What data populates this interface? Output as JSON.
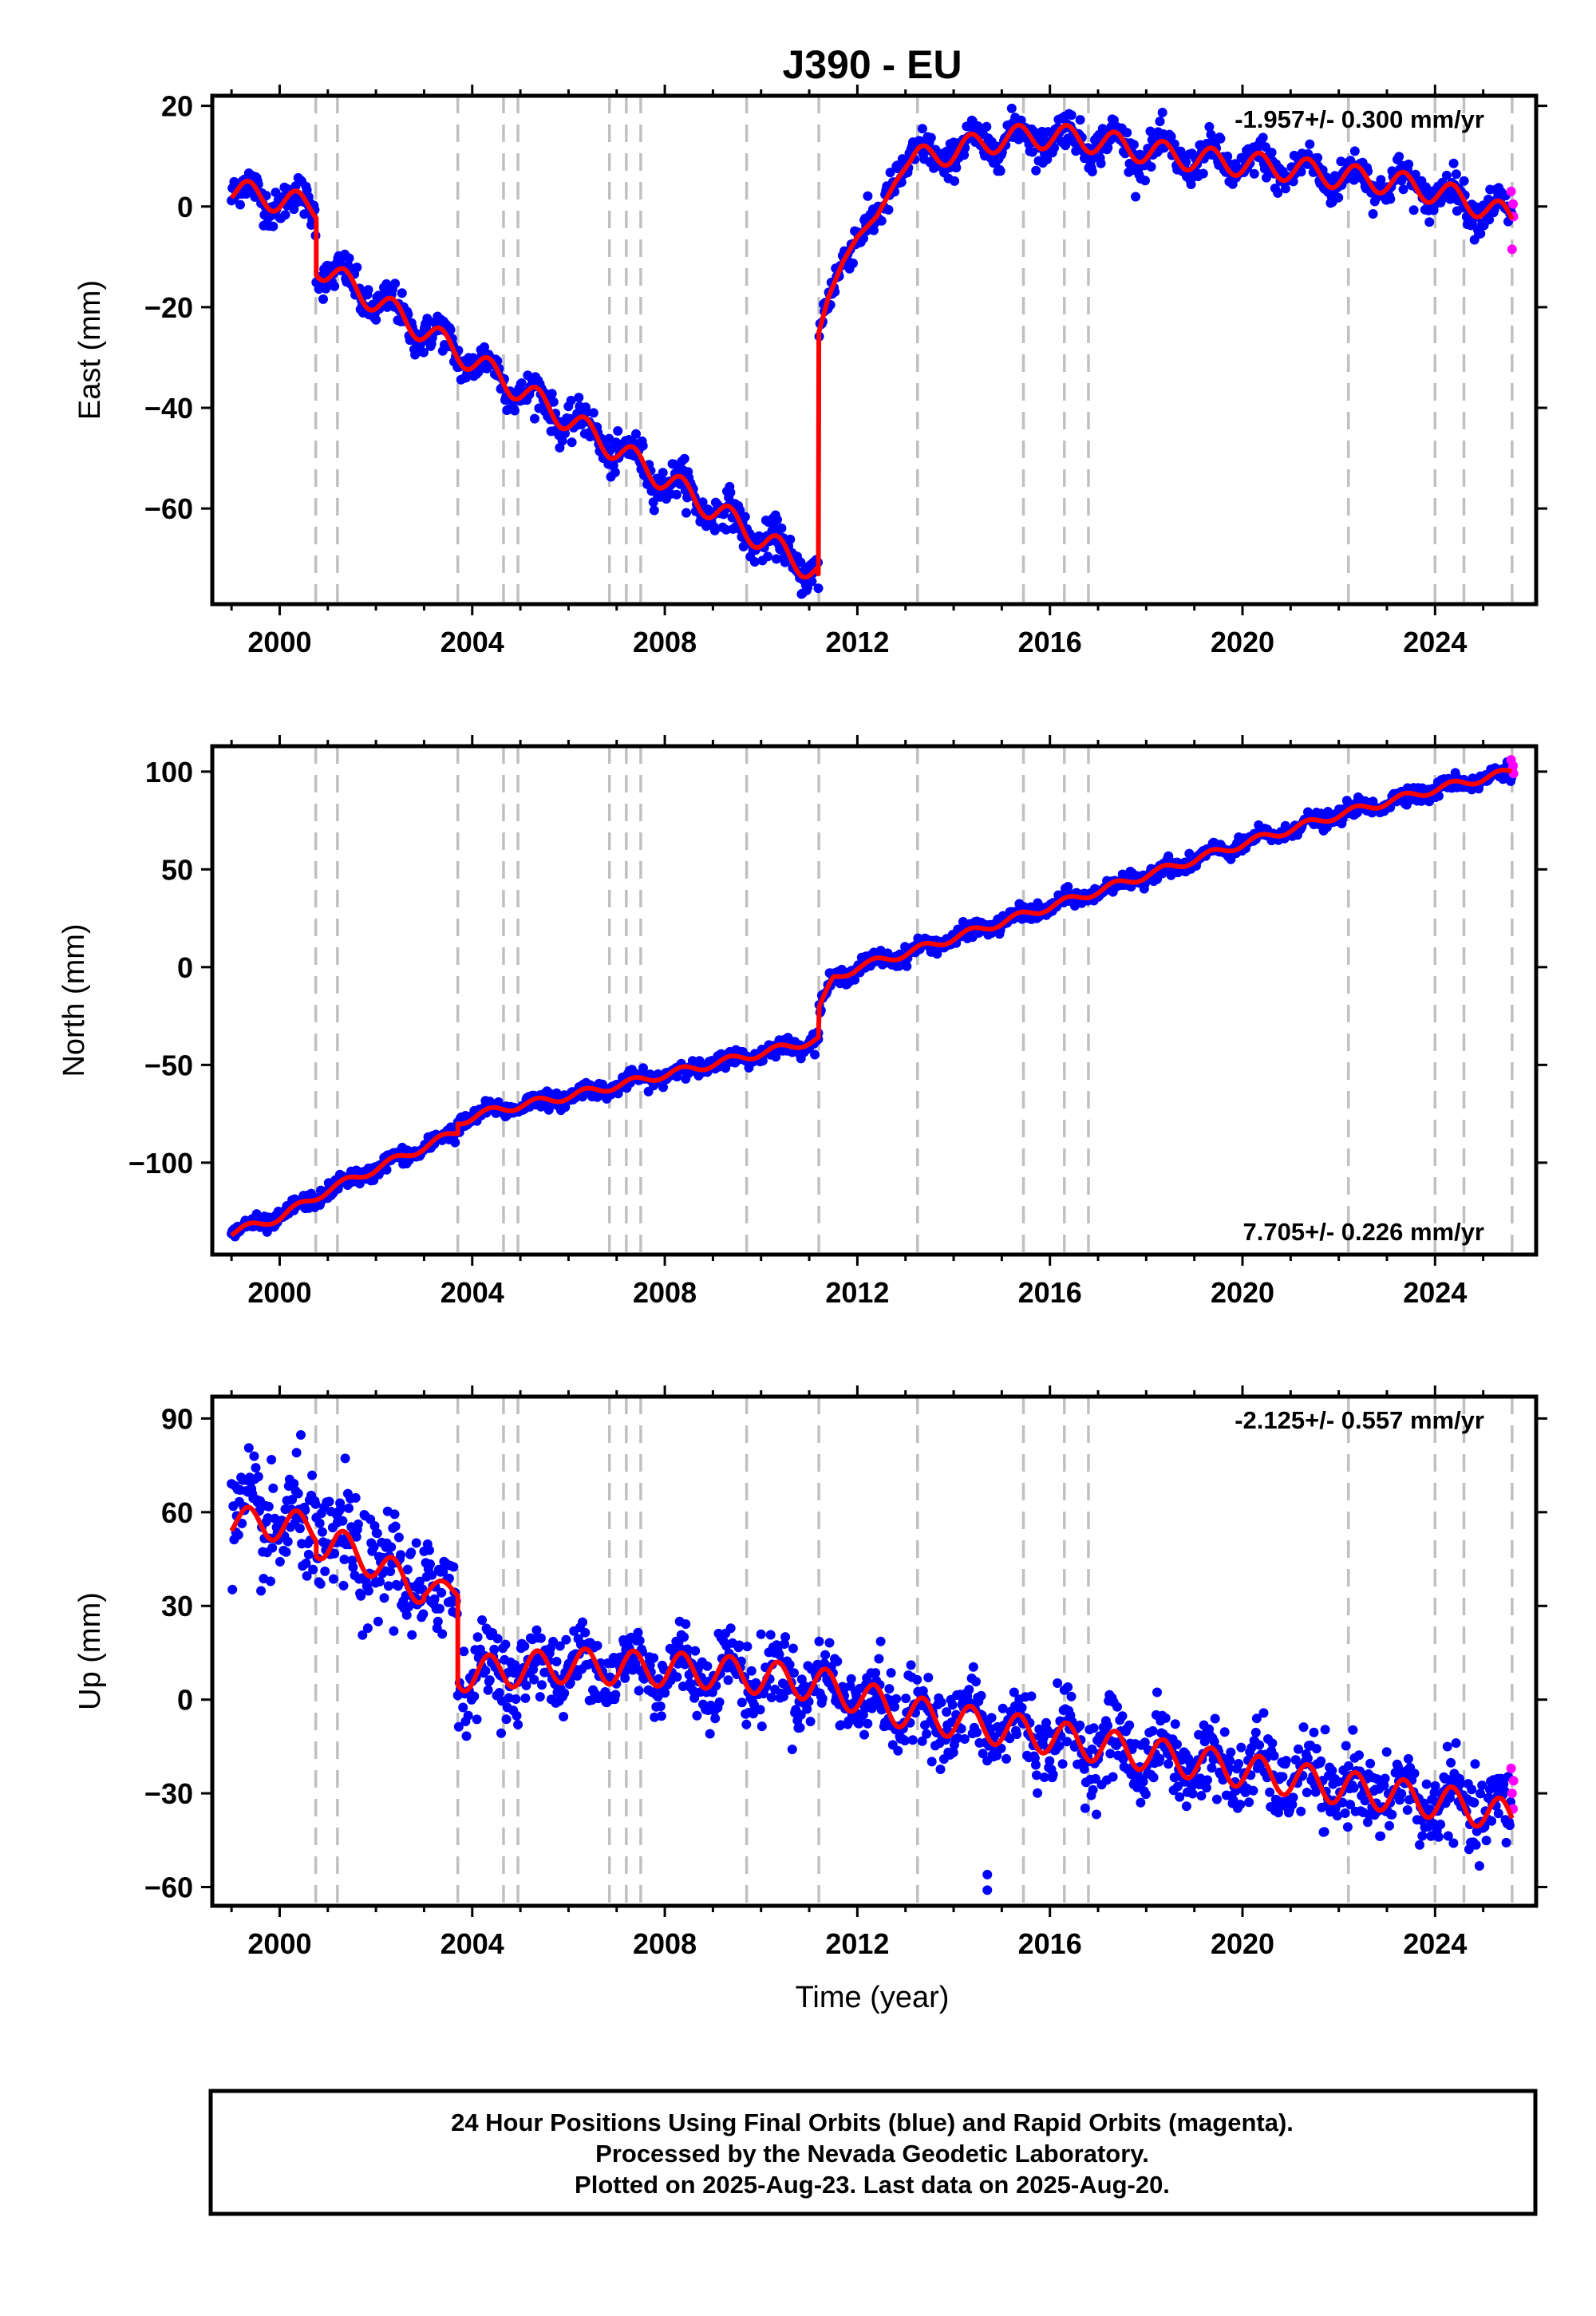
{
  "title": "J390 - EU",
  "x_axis_label": "Time (year)",
  "footer": {
    "line1": "24 Hour Positions Using Final Orbits (blue) and Rapid Orbits (magenta).",
    "line2": "Processed by the Nevada Geodetic Laboratory.",
    "line3": "Plotted on 2025-Aug-23. Last data on 2025-Aug-20."
  },
  "colors": {
    "final_orbits": "#0000ff",
    "rapid_orbits": "#ff00ff",
    "model": "#ff0000",
    "event_lines": "#c0c0c0"
  },
  "chart_data": [
    {
      "type": "scatter",
      "panel": "east",
      "ylabel": "East (mm)",
      "rate_text": "-1.957+/- 0.300 mm/yr",
      "rate_position": "top-right",
      "xlim": [
        1998.6,
        2026.1
      ],
      "ylim": [
        -79,
        22
      ],
      "xticks": [
        2000,
        2004,
        2008,
        2012,
        2016,
        2020,
        2024
      ],
      "yticks": [
        20,
        0,
        -20,
        -40,
        -60
      ],
      "event_lines": [
        2000.75,
        2001.2,
        2003.7,
        2004.65,
        2004.95,
        2006.85,
        2007.2,
        2007.5,
        2009.7,
        2011.2,
        2013.25,
        2015.45,
        2016.3,
        2016.8,
        2022.2,
        2024.0,
        2024.6,
        2025.6
      ],
      "model": {
        "series_color": "red",
        "segments": [
          {
            "x": [
              1999.0,
              2000.76
            ],
            "y": [
              3.2,
              -0.2
            ],
            "annual_amp": 2.5
          },
          {
            "x": [
              2000.76,
              2011.19
            ],
            "y": [
              -11.5,
              -73.0
            ],
            "annual_amp": 2.5
          },
          {
            "x": [
              2011.19,
              2011.2,
              2011.4,
              2011.7,
              2012.0,
              2012.4,
              2012.8,
              2013.1
            ],
            "y": [
              -73.0,
              -25.0,
              -18.0,
              -11.0,
              -6.0,
              -2.0,
              5.0,
              9.0
            ],
            "annual_amp": 0
          },
          {
            "x": [
              2013.1,
              2014.0,
              2015.0,
              2016.0,
              2017.0,
              2018.0,
              2019.0,
              2020.0,
              2021.0,
              2022.0,
              2023.0,
              2024.0,
              2025.0,
              2025.6
            ],
            "y": [
              9.0,
              11.0,
              13.5,
              14.0,
              13.0,
              11.0,
              9.5,
              8.5,
              7.5,
              6.0,
              5.0,
              3.0,
              0.0,
              -2.5
            ],
            "annual_amp": 2.5
          }
        ]
      },
      "final_scatter_sd": 1.8,
      "rapid_points": {
        "x": [
          2025.58,
          2025.6,
          2025.62,
          2025.63
        ],
        "y": [
          3.0,
          -8.5,
          0.5,
          -2.0
        ]
      }
    },
    {
      "type": "scatter",
      "panel": "north",
      "ylabel": "North (mm)",
      "rate_text": "7.705+/- 0.226 mm/yr",
      "rate_position": "bottom-right",
      "xlim": [
        1998.6,
        2026.1
      ],
      "ylim": [
        -147,
        113
      ],
      "xticks": [
        2000,
        2004,
        2008,
        2012,
        2016,
        2020,
        2024
      ],
      "yticks": [
        100,
        50,
        0,
        -50,
        -100
      ],
      "event_lines": [
        2000.75,
        2001.2,
        2003.7,
        2004.65,
        2004.95,
        2006.85,
        2007.2,
        2007.5,
        2009.7,
        2011.2,
        2013.25,
        2015.45,
        2016.3,
        2016.8,
        2022.2,
        2024.0,
        2024.6,
        2025.6
      ],
      "model": {
        "series_color": "red",
        "segments": [
          {
            "x": [
              1999.0,
              2000.0,
              2001.0,
              2002.0,
              2003.0,
              2003.7
            ],
            "y": [
              -136.0,
              -128.0,
              -114.0,
              -103.0,
              -92.0,
              -84.0
            ],
            "annual_amp": 2.0
          },
          {
            "x": [
              2003.7,
              2004.5,
              2006.0,
              2008.0,
              2010.0,
              2011.19
            ],
            "y": [
              -79.0,
              -73.0,
              -66.0,
              -55.0,
              -44.0,
              -37.0
            ],
            "annual_amp": 2.0
          },
          {
            "x": [
              2011.19,
              2011.2,
              2011.5,
              2012.0,
              2013.0,
              2014.0,
              2016.0,
              2018.0,
              2020.0,
              2022.0,
              2024.0,
              2025.6
            ],
            "y": [
              -37.0,
              -22.0,
              -6.0,
              0.0,
              7.0,
              15.0,
              31.0,
              47.0,
              63.0,
              78.0,
              91.0,
              100.0
            ],
            "annual_amp": 2.0
          }
        ]
      },
      "final_scatter_sd": 2.0,
      "rapid_points": {
        "x": [
          2025.58,
          2025.6,
          2025.62,
          2025.63
        ],
        "y": [
          106.0,
          101.0,
          103.0,
          99.0
        ]
      }
    },
    {
      "type": "scatter",
      "panel": "up",
      "ylabel": "Up (mm)",
      "rate_text": "-2.125+/- 0.557 mm/yr",
      "rate_position": "top-right",
      "xlim": [
        1998.6,
        2026.1
      ],
      "ylim": [
        -66,
        97
      ],
      "xticks": [
        2000,
        2004,
        2008,
        2012,
        2016,
        2020,
        2024
      ],
      "yticks": [
        90,
        60,
        30,
        0,
        -30,
        -60
      ],
      "event_lines": [
        2000.75,
        2001.2,
        2003.7,
        2004.65,
        2004.95,
        2006.85,
        2007.2,
        2007.5,
        2009.7,
        2011.2,
        2013.25,
        2015.45,
        2016.3,
        2016.8,
        2022.2,
        2024.0,
        2024.6,
        2025.6
      ],
      "model": {
        "series_color": "red",
        "segments": [
          {
            "x": [
              1999.0,
              2000.76
            ],
            "y": [
              57.0,
              55.0
            ],
            "annual_amp": 5.0
          },
          {
            "x": [
              2000.76,
              2001.2
            ],
            "y": [
              50.0,
              50.0
            ],
            "annual_amp": 5.0
          },
          {
            "x": [
              2001.2,
              2003.0
            ],
            "y": [
              50.0,
              35.0
            ],
            "annual_amp": 5.0
          },
          {
            "x": [
              2003.0,
              2003.7
            ],
            "y": [
              35.0,
              35.0
            ],
            "annual_amp": 3.0
          },
          {
            "x": [
              2003.7,
              2006.0,
              2009.0,
              2011.2,
              2013.0,
              2016.0,
              2019.0,
              2022.0,
              2024.6,
              2025.6
            ],
            "y": [
              8.0,
              11.0,
              9.0,
              5.0,
              -4.0,
              -12.0,
              -20.0,
              -28.0,
              -34.0,
              -38.0
            ],
            "annual_amp": 5.5
          }
        ]
      },
      "final_scatter_sd": 6.0,
      "outliers": {
        "x": [
          2014.7,
          2014.7,
          2004.95
        ],
        "y": [
          -56.0,
          -61.0,
          -8.0
        ]
      },
      "rapid_points": {
        "x": [
          2025.58,
          2025.6,
          2025.62,
          2025.63
        ],
        "y": [
          -22.0,
          -30.0,
          -35.0,
          -26.0
        ]
      }
    }
  ]
}
